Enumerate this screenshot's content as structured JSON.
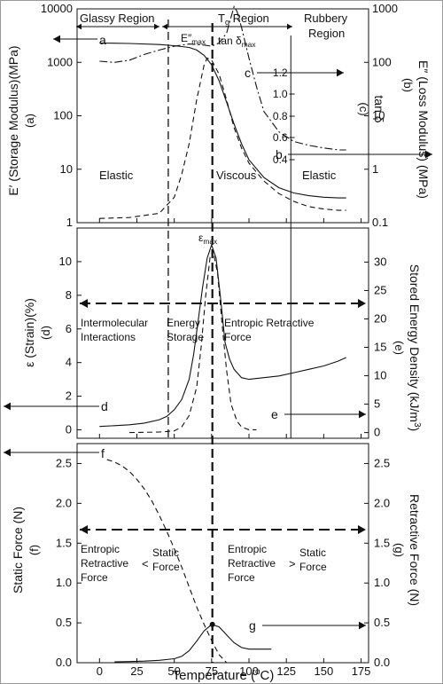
{
  "chart_data": [
    {
      "type": "line",
      "title": "",
      "regions": {
        "glassy": "Glassy Region",
        "tg": "T",
        "tg_sub": "g",
        "tg_rest": " Region",
        "rubbery_1": "Rubbery",
        "rubbery_2": "Region"
      },
      "axes": {
        "left_label": "E′ (Storage Modulus)(MPa)",
        "left_sub": "(a)",
        "left_scale": "log",
        "left_ylim": [
          1,
          10000
        ],
        "left_ticks": [
          "1",
          "10",
          "100",
          "1000",
          "10000"
        ],
        "right_label": "E″ (Loss Modulus) (MPa)",
        "right_sub": "(b)",
        "right_scale": "log",
        "right_ylim": [
          0.1,
          1000
        ],
        "right_ticks": [
          "0.1",
          "1",
          "10",
          "100",
          "1000"
        ],
        "inner_label": "tan δ",
        "inner_sub": "(c)",
        "inner_ticks": [
          "0.4",
          "0.6",
          "0.8",
          "1.0",
          "1.2"
        ]
      },
      "annotations": {
        "a": "a",
        "b": "b",
        "c": "c",
        "e_max": "E″",
        "e_max_sub": "max",
        "tan_max": "tan δ",
        "tan_max_sub": "max",
        "elastic_left": "Elastic",
        "viscous": "Viscous",
        "elastic_right": "Elastic"
      },
      "series": [
        {
          "name": "E′",
          "style": "solid",
          "x": [
            0,
            20,
            40,
            50,
            60,
            65,
            70,
            75,
            80,
            85,
            90,
            95,
            100,
            110,
            120,
            130,
            140,
            150,
            160,
            165
          ],
          "y": [
            2300,
            2250,
            2150,
            2050,
            1900,
            1700,
            1350,
            900,
            450,
            180,
            70,
            30,
            15,
            7,
            4.5,
            3.6,
            3.2,
            3.0,
            2.9,
            2.9
          ]
        },
        {
          "name": "E″",
          "style": "dashed",
          "x": [
            0,
            20,
            40,
            50,
            55,
            60,
            65,
            70,
            72,
            75,
            80,
            85,
            90,
            95,
            100,
            110,
            120,
            130,
            140,
            150,
            160,
            165
          ],
          "y": [
            0.12,
            0.125,
            0.15,
            0.3,
            0.8,
            3,
            20,
            90,
            120,
            110,
            60,
            20,
            6,
            2.5,
            1.3,
            0.6,
            0.35,
            0.25,
            0.2,
            0.18,
            0.17,
            0.17
          ]
        },
        {
          "name": "tan δ",
          "style": "dashdot",
          "x": [
            0,
            10,
            20,
            30,
            40,
            50,
            60,
            70,
            75,
            80,
            85,
            88,
            90,
            92,
            95,
            100,
            105,
            110,
            120,
            130,
            140,
            150,
            160,
            165
          ],
          "y": [
            105,
            100,
            110,
            140,
            170,
            200,
            220,
            210,
            200,
            230,
            350,
            700,
            1100,
            900,
            450,
            120,
            35,
            12,
            5,
            3.3,
            2.8,
            2.5,
            2.3,
            2.3
          ]
        }
      ]
    },
    {
      "type": "line",
      "title": "",
      "axes": {
        "left_label": "ε (Strain)(%)",
        "left_sub": "(d)",
        "left_ylim": [
          -0.5,
          12
        ],
        "left_ticks": [
          "0",
          "2",
          "4",
          "6",
          "8",
          "10"
        ],
        "right_label": "Stored Energy Density (kJ/m",
        "right_label_sup": "3",
        "right_label_end": ")",
        "right_sub": "(e)",
        "right_ylim": [
          -1,
          36
        ],
        "right_ticks": [
          "0",
          "5",
          "10",
          "15",
          "20",
          "25",
          "30"
        ]
      },
      "annotations": {
        "d": "d",
        "e": "e",
        "eps_max": "ε",
        "eps_max_sub": "max",
        "intermolecular_1": "Intermolecular",
        "intermolecular_2": "Interactions",
        "energy_1": "Energy",
        "energy_2": "Storage",
        "entropic": "Entropic Retractive",
        "force": "Force"
      },
      "series": [
        {
          "name": "ε",
          "style": "solid",
          "x": [
            0,
            10,
            20,
            30,
            40,
            45,
            50,
            55,
            60,
            63,
            66,
            69,
            72,
            75,
            78,
            81,
            84,
            87,
            90,
            95,
            100,
            110,
            120,
            130,
            140,
            150,
            160,
            165
          ],
          "y": [
            0.2,
            0.25,
            0.3,
            0.4,
            0.6,
            0.8,
            1.2,
            1.8,
            3.0,
            4.5,
            6.5,
            8.5,
            10.2,
            11.0,
            10.2,
            7.8,
            5.2,
            4.2,
            3.6,
            3.1,
            3.0,
            3.1,
            3.2,
            3.4,
            3.6,
            3.8,
            4.1,
            4.3
          ]
        },
        {
          "name": "Stored energy density",
          "style": "dashed",
          "x": [
            20,
            40,
            50,
            55,
            60,
            65,
            68,
            71,
            74,
            76,
            79,
            82,
            85,
            88,
            92,
            95,
            100,
            105
          ],
          "y": [
            0,
            0.1,
            0.3,
            1,
            3,
            8,
            15,
            24,
            31,
            32,
            28,
            19,
            11,
            5,
            2,
            1,
            0.5,
            0.5
          ]
        }
      ]
    },
    {
      "type": "line",
      "title": "",
      "axes": {
        "left_label": "Static Force (N)",
        "left_sub": "(f)",
        "left_ylim": [
          0,
          2.75
        ],
        "left_ticks": [
          "0.0",
          "0.5",
          "1.0",
          "1.5",
          "2.0",
          "2.5"
        ],
        "right_label": "Retractive Force (N)",
        "right_sub": "(g)",
        "right_ylim": [
          0,
          2.75
        ],
        "right_ticks": [
          "0.0",
          "0.5",
          "1.0",
          "1.5",
          "2.0",
          "2.5"
        ],
        "xlabel": "Temperature (",
        "xlabel_sup": "o",
        "xlabel_end": "C)",
        "xlim": [
          -15,
          180
        ],
        "x_ticks": [
          "0",
          "25",
          "50",
          "75",
          "100",
          "125",
          "150",
          "175"
        ]
      },
      "annotations": {
        "f": "f",
        "g": "g",
        "left_1": "Entropic",
        "left_2": "Retractive",
        "left_3": "Force",
        "lt": "<",
        "static_1a": "Static",
        "static_1b": "Force",
        "right_1": "Entropic",
        "right_2": "Retractive",
        "right_3": "Force",
        "gt": ">",
        "static_2a": "Static",
        "static_2b": "Force"
      },
      "series": [
        {
          "name": "Static force",
          "style": "dashed",
          "x": [
            5,
            10,
            15,
            20,
            25,
            30,
            35,
            40,
            45,
            50,
            55,
            60,
            65,
            70,
            75,
            80,
            85
          ],
          "y": [
            2.55,
            2.52,
            2.47,
            2.4,
            2.3,
            2.18,
            2.03,
            1.85,
            1.65,
            1.43,
            1.2,
            0.95,
            0.7,
            0.48,
            0.28,
            0.1,
            0.0
          ]
        },
        {
          "name": "Retractive force",
          "style": "solid",
          "x": [
            10,
            20,
            30,
            40,
            50,
            55,
            60,
            65,
            70,
            75,
            80,
            85,
            90,
            95,
            100,
            110,
            115
          ],
          "y": [
            0.01,
            0.015,
            0.02,
            0.03,
            0.05,
            0.08,
            0.15,
            0.27,
            0.4,
            0.48,
            0.45,
            0.35,
            0.25,
            0.19,
            0.17,
            0.17,
            0.17
          ]
        }
      ]
    }
  ]
}
